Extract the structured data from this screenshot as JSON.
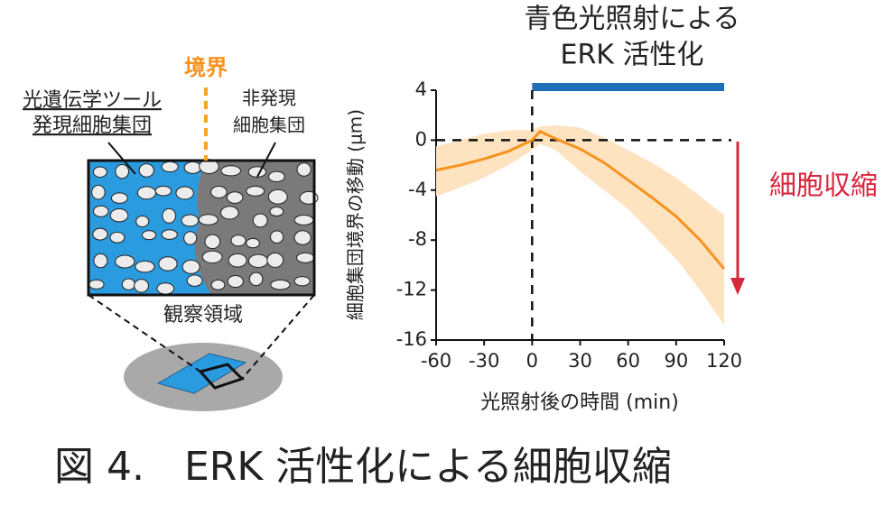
{
  "diagram": {
    "boundary": "境界",
    "expressing": [
      "光遺伝学ツール",
      "発現細胞集団"
    ],
    "non_expressing": [
      "非発現",
      "細胞集団"
    ],
    "region": "観察領域"
  },
  "chart_data": {
    "type": "line",
    "annotation": [
      "青色光照射による",
      "ERK 活性化"
    ],
    "arrow_label": "細胞収縮",
    "light_on": [
      0,
      120
    ],
    "light_color": "#1f6fb8",
    "ylabel": "細胞集団境界の移動 (μm)",
    "xlabel": "光照射後の時間 (min)",
    "xlim": [
      -60,
      120
    ],
    "xticks": [
      -60,
      -30,
      0,
      30,
      60,
      90,
      120
    ],
    "ylim": [
      -16,
      4
    ],
    "yticks": [
      -16,
      -12,
      -8,
      -4,
      0,
      4
    ],
    "x": [
      -60,
      -45,
      -30,
      -15,
      0,
      5,
      15,
      30,
      45,
      60,
      75,
      90,
      105,
      120
    ],
    "series": [
      {
        "color": "#f5931e",
        "band_color": "#fde3bf",
        "values": [
          -2.4,
          -2.0,
          -1.5,
          -0.9,
          0,
          0.7,
          0.1,
          -0.7,
          -1.8,
          -3.2,
          -4.6,
          -6.1,
          -8.0,
          -10.3
        ],
        "upper": [
          -0.5,
          0,
          0.5,
          0.8,
          0.8,
          1.1,
          1.2,
          1.0,
          0.2,
          -0.8,
          -1.8,
          -3.0,
          -4.5,
          -6.0
        ],
        "lower": [
          -4.5,
          -3.8,
          -3.0,
          -2.0,
          -0.8,
          -0.3,
          -0.8,
          -2.5,
          -4.0,
          -5.5,
          -7.5,
          -9.5,
          -12.0,
          -14.8
        ]
      }
    ]
  },
  "caption": "図 4.　ERK 活性化による細胞収縮"
}
